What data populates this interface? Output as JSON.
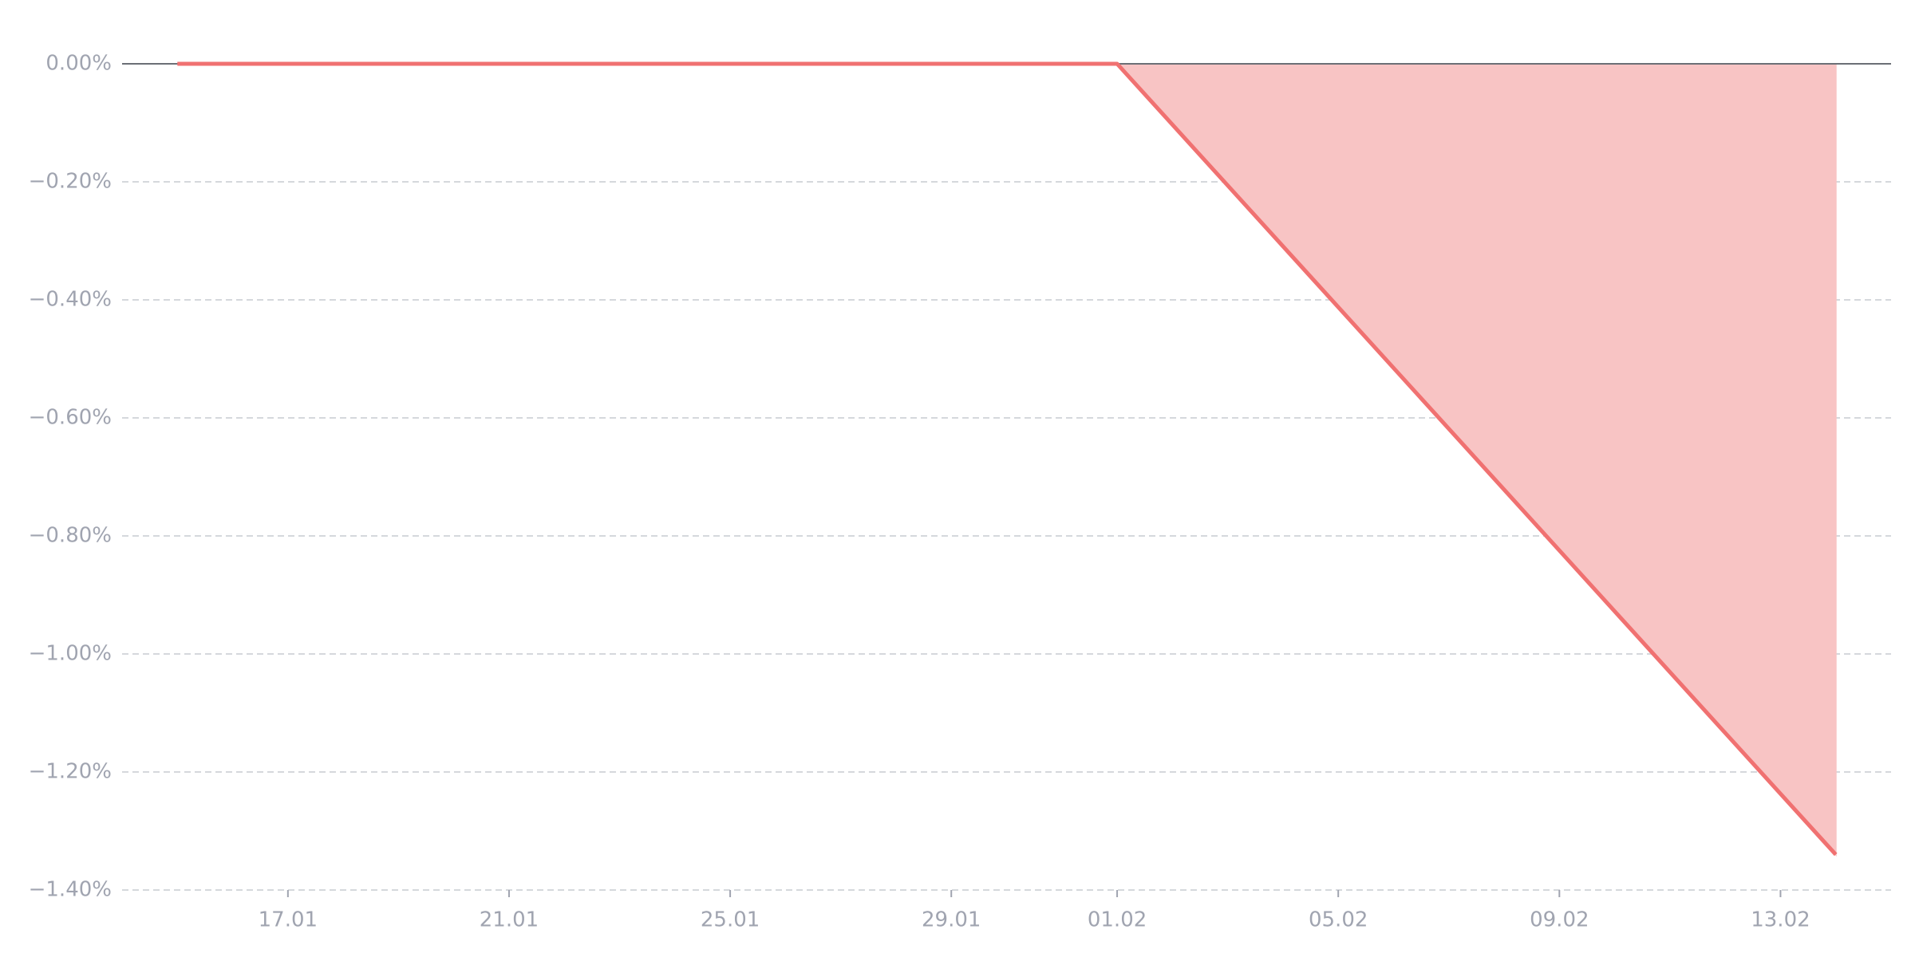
{
  "chart_data": {
    "type": "area",
    "x": [
      "15.01",
      "01.02",
      "14.02"
    ],
    "values": [
      0,
      0,
      -1.34
    ],
    "line_color": "#f07171",
    "fill_color": "#f8c4c4",
    "baseline_color": "#6b6f76",
    "xlim": [
      "14.01",
      "15.02"
    ],
    "xticks": [
      "17.01",
      "21.01",
      "25.01",
      "29.01",
      "01.02",
      "05.02",
      "09.02",
      "13.02"
    ],
    "ylim": [
      -1.4,
      0
    ],
    "yticks": [
      {
        "value": 0,
        "label": "0.00%"
      },
      {
        "value": -0.2,
        "label": "−0.20%"
      },
      {
        "value": -0.4,
        "label": "−0.40%"
      },
      {
        "value": -0.6,
        "label": "−0.60%"
      },
      {
        "value": -0.8,
        "label": "−0.80%"
      },
      {
        "value": -1.0,
        "label": "−1.00%"
      },
      {
        "value": -1.2,
        "label": "−1.20%"
      },
      {
        "value": -1.4,
        "label": "−1.40%"
      }
    ],
    "grid": true
  }
}
